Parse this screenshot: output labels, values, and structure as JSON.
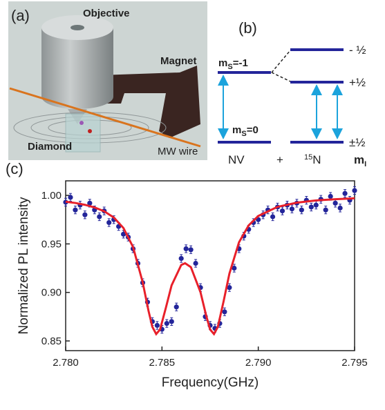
{
  "panel_a": {
    "label": "(a)",
    "objective": "Objective",
    "magnet": "Magnet",
    "diamond": "Diamond",
    "wire": "MW wire"
  },
  "panel_b": {
    "label": "(b)",
    "upper_left": {
      "base": "m",
      "sub": "S",
      "rest": "=-1"
    },
    "lower_left": {
      "base": "m",
      "sub": "S",
      "rest": "=0"
    },
    "right_top": "- ½",
    "right_mid": "+½",
    "right_bottom": "±½",
    "nv": "NV",
    "plus": "+",
    "n15": {
      "sup": "15",
      "base": "N"
    },
    "mi": {
      "base": "m",
      "sub": "I"
    }
  },
  "chart_data": {
    "type": "scatter",
    "panel_label": "(c)",
    "x_label": "Frequency(GHz)",
    "y_label": "Normalized PL intensity",
    "xlim": [
      2.78,
      2.795
    ],
    "ylim": [
      0.84,
      1.015
    ],
    "xticks": [
      {
        "value": 2.78,
        "label": "2.780"
      },
      {
        "value": 2.785,
        "label": "2.785"
      },
      {
        "value": 2.79,
        "label": "2.790"
      },
      {
        "value": 2.795,
        "label": "2.795"
      }
    ],
    "yticks": [
      0.85,
      {
        "value": 0.9,
        "label": "0.90"
      },
      0.95,
      {
        "value": 1.0,
        "label": "1.00"
      }
    ],
    "series": [
      {
        "type": "scatter",
        "color": "#23259a",
        "error": 0.004,
        "x": [
          2.78,
          2.78025,
          2.7805,
          2.78075,
          2.781,
          2.78125,
          2.7815,
          2.78175,
          2.782,
          2.78225,
          2.7825,
          2.78275,
          2.783,
          2.78325,
          2.7835,
          2.78375,
          2.784,
          2.78425,
          2.7845,
          2.78475,
          2.785,
          2.78525,
          2.7855,
          2.78575,
          2.786,
          2.78625,
          2.7865,
          2.78675,
          2.787,
          2.78725,
          2.7875,
          2.78775,
          2.788,
          2.78825,
          2.7885,
          2.78875,
          2.789,
          2.78925,
          2.7895,
          2.78975,
          2.79,
          2.79025,
          2.7905,
          2.79075,
          2.791,
          2.79125,
          2.7915,
          2.79175,
          2.792,
          2.79225,
          2.7925,
          2.79275,
          2.793,
          2.79325,
          2.7935,
          2.79375,
          2.794,
          2.79425,
          2.7945,
          2.79475,
          2.795
        ],
        "values": [
          0.993,
          0.998,
          0.985,
          0.99,
          0.98,
          0.992,
          0.985,
          0.978,
          0.984,
          0.972,
          0.975,
          0.968,
          0.96,
          0.957,
          0.945,
          0.93,
          0.91,
          0.89,
          0.87,
          0.866,
          0.862,
          0.868,
          0.87,
          0.885,
          0.935,
          0.945,
          0.944,
          0.93,
          0.905,
          0.875,
          0.866,
          0.863,
          0.868,
          0.88,
          0.905,
          0.925,
          0.945,
          0.958,
          0.965,
          0.972,
          0.975,
          0.98,
          0.985,
          0.978,
          0.988,
          0.984,
          0.99,
          0.986,
          0.992,
          0.985,
          0.995,
          0.988,
          0.99,
          0.996,
          0.985,
          0.999,
          0.992,
          0.987,
          1.002,
          0.995,
          1.005
        ]
      },
      {
        "type": "line",
        "color": "#e8202a",
        "x": [
          2.78,
          2.7805,
          2.781,
          2.7815,
          2.782,
          2.7825,
          2.783,
          2.7835,
          2.784,
          2.7843,
          2.7845,
          2.7847,
          2.7849,
          2.7852,
          2.7855,
          2.786,
          2.7862,
          2.7865,
          2.787,
          2.7873,
          2.7875,
          2.7877,
          2.7879,
          2.7882,
          2.7885,
          2.789,
          2.7895,
          2.79,
          2.791,
          2.792,
          2.793,
          2.794,
          2.795
        ],
        "values": [
          0.9935,
          0.9922,
          0.9903,
          0.9876,
          0.9836,
          0.9772,
          0.9664,
          0.9467,
          0.9104,
          0.8811,
          0.8646,
          0.8571,
          0.8618,
          0.884,
          0.9073,
          0.9283,
          0.9301,
          0.9261,
          0.9002,
          0.8757,
          0.8618,
          0.8571,
          0.8645,
          0.8909,
          0.9193,
          0.9517,
          0.9691,
          0.9788,
          0.9882,
          0.9925,
          0.9948,
          0.9961,
          0.997
        ]
      }
    ]
  }
}
